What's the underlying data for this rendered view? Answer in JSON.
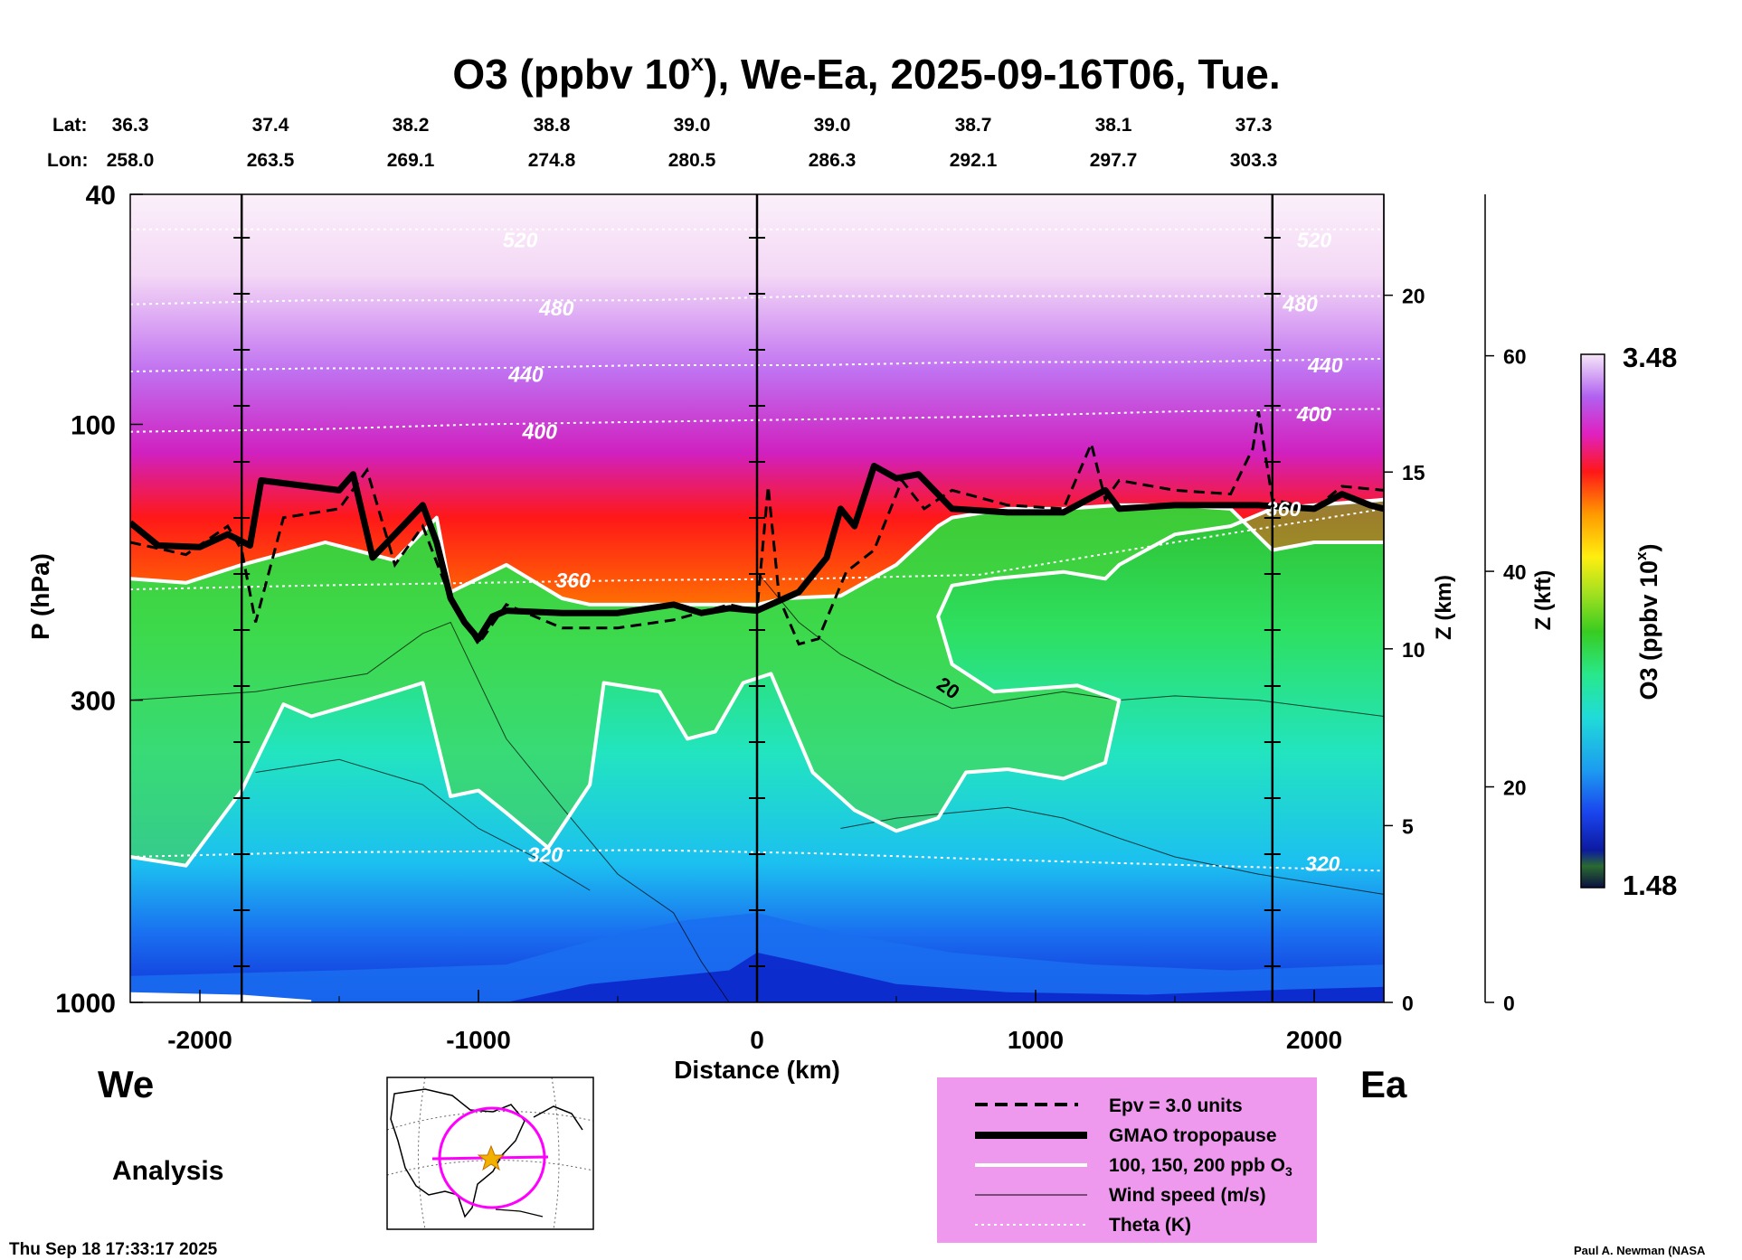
{
  "chart_data": {
    "type": "heatmap",
    "title": "O3 (ppbv 10^x), We-Ea, 2025-09-16T06, Tue.",
    "title_parts": {
      "main": "O3 (ppbv 10",
      "sup": "x",
      "rest": "), We-Ea, 2025-09-16T06, Tue."
    },
    "header": {
      "lat_label": "Lat:",
      "lon_label": "Lon:",
      "lat": [
        "36.3",
        "37.4",
        "38.2",
        "38.8",
        "39.0",
        "39.0",
        "38.7",
        "38.1",
        "37.3"
      ],
      "lon": [
        "258.0",
        "263.5",
        "269.1",
        "274.8",
        "280.5",
        "286.3",
        "292.1",
        "297.7",
        "303.3"
      ],
      "positions_km": [
        -2250,
        -1750,
        -1250,
        -750,
        -250,
        250,
        750,
        1250,
        1750
      ]
    },
    "xlabel": "Distance (km)",
    "xlim": [
      -2250,
      2250
    ],
    "xticks": [
      -2000,
      -1000,
      0,
      1000,
      2000
    ],
    "xtick_labels": [
      "-2000",
      "-1000",
      "0",
      "1000",
      "2000"
    ],
    "ylabel": "P (hPa)",
    "ylim": [
      1000,
      40
    ],
    "yscale": "log",
    "yticks": [
      1000,
      300,
      100,
      40
    ],
    "ytick_labels": [
      "1000",
      "300",
      "100",
      "40"
    ],
    "z_km_label": "Z (km)",
    "z_km_ticks": [
      0,
      5,
      10,
      15,
      20
    ],
    "z_km_tick_labels": [
      "0",
      "5",
      "10",
      "15",
      "20"
    ],
    "z_kft_label": "Z (kft)",
    "z_kft_ticks": [
      0,
      20,
      40,
      60
    ],
    "z_kft_tick_labels": [
      "0",
      "20",
      "40",
      "60"
    ],
    "profile_lines_km": [
      -1850,
      0,
      1850
    ],
    "colorbar": {
      "label": "O3 (ppbv 10^x)",
      "label_main": "O3 (ppbv 10",
      "label_sup": "x",
      "label_end": ")",
      "max": "3.48",
      "min": "1.48",
      "range": [
        1.48,
        3.48
      ]
    },
    "theta_contours": [
      {
        "label": "320",
        "p": [
          560,
          550,
          548,
          545,
          552,
          565,
          578,
          592
        ]
      },
      {
        "label": "360",
        "p": [
          193,
          190,
          188,
          186,
          185,
          182,
          160,
          140
        ]
      },
      {
        "label": "400",
        "p": [
          103,
          102,
          100,
          99,
          98,
          97,
          95,
          94
        ]
      },
      {
        "label": "440",
        "p": [
          81,
          80,
          80,
          79,
          79,
          78,
          78,
          77
        ]
      },
      {
        "label": "480",
        "p": [
          62,
          61,
          61,
          61,
          60,
          60,
          60,
          60
        ]
      },
      {
        "label": "520",
        "p": [
          46,
          46,
          46,
          46,
          46,
          46,
          46,
          46
        ]
      }
    ],
    "theta_labels": [
      {
        "text": "520",
        "km": -850,
        "p": 48
      },
      {
        "text": "480",
        "km": -720,
        "p": 63
      },
      {
        "text": "440",
        "km": -830,
        "p": 82
      },
      {
        "text": "400",
        "km": -780,
        "p": 103
      },
      {
        "text": "360",
        "km": -660,
        "p": 186
      },
      {
        "text": "320",
        "km": -760,
        "p": 555
      },
      {
        "text": "520",
        "km": 2000,
        "p": 48
      },
      {
        "text": "480",
        "km": 1950,
        "p": 62
      },
      {
        "text": "440",
        "km": 2040,
        "p": 79
      },
      {
        "text": "400",
        "km": 2000,
        "p": 96
      },
      {
        "text": "360",
        "km": 1890,
        "p": 140
      },
      {
        "text": "320",
        "km": 2030,
        "p": 575
      }
    ],
    "wind_label": {
      "text": "20",
      "km": 640,
      "p": 285
    },
    "tropopause": {
      "km": [
        -2250,
        -2150,
        -2000,
        -1900,
        -1820,
        -1780,
        -1500,
        -1450,
        -1380,
        -1300,
        -1200,
        -1150,
        -1100,
        -1050,
        -1000,
        -950,
        -900,
        -700,
        -500,
        -300,
        -200,
        -100,
        0,
        150,
        250,
        300,
        350,
        420,
        500,
        580,
        700,
        900,
        1100,
        1250,
        1300,
        1500,
        1800,
        2000,
        2100,
        2200,
        2250
      ],
      "p": [
        148,
        162,
        163,
        155,
        162,
        125,
        130,
        122,
        170,
        155,
        138,
        160,
        200,
        220,
        235,
        215,
        210,
        212,
        212,
        205,
        212,
        208,
        210,
        195,
        170,
        140,
        150,
        118,
        124,
        122,
        140,
        142,
        142,
        130,
        140,
        138,
        138,
        140,
        132,
        138,
        140
      ]
    },
    "epv_contour": {
      "km": [
        -2250,
        -2050,
        -1900,
        -1850,
        -1800,
        -1700,
        -1500,
        -1400,
        -1300,
        -1200,
        -1100,
        -1000,
        -900,
        -700,
        -500,
        -300,
        -100,
        0,
        40,
        80,
        150,
        220,
        320,
        420,
        520,
        600,
        700,
        900,
        1100,
        1200,
        1250,
        1300,
        1500,
        1700,
        1780,
        1800,
        1850,
        2000,
        2100,
        2250
      ],
      "p": [
        160,
        168,
        150,
        165,
        220,
        145,
        140,
        120,
        175,
        150,
        200,
        240,
        205,
        225,
        225,
        218,
        205,
        210,
        128,
        200,
        240,
        235,
        180,
        165,
        125,
        140,
        130,
        138,
        140,
        108,
        135,
        125,
        130,
        132,
        110,
        95,
        135,
        140,
        128,
        130
      ]
    },
    "o3_contours": [
      {
        "label": "100 ppb",
        "km": [
          -2250,
          -2050,
          -1850,
          -1550,
          -1300,
          -1150,
          -1100,
          -900,
          -700,
          -600,
          -500,
          -350,
          -200,
          0,
          100,
          300,
          500,
          650,
          700,
          900,
          1100,
          1300,
          1500,
          1700,
          1850,
          2000,
          2250
        ],
        "p": [
          185,
          188,
          175,
          160,
          172,
          145,
          195,
          175,
          200,
          205,
          205,
          205,
          205,
          205,
          200,
          198,
          175,
          150,
          145,
          140,
          140,
          138,
          138,
          140,
          165,
          160,
          160
        ]
      },
      {
        "label": "150 ppb",
        "km": [
          -2250,
          -2050,
          -1850,
          -1700,
          -1600,
          -1450,
          -1300,
          -1200,
          -1100,
          -1000,
          -900,
          -750,
          -600,
          -550,
          -350,
          -250,
          -150,
          -50,
          50,
          200,
          350,
          500,
          650,
          750,
          900,
          1100,
          1250,
          1300,
          1150,
          850,
          700,
          650,
          700,
          850,
          1100,
          1250,
          1300,
          1500,
          1700,
          1850,
          2000,
          2250
        ],
        "p": [
          560,
          580,
          430,
          305,
          320,
          305,
          290,
          280,
          440,
          430,
          470,
          540,
          420,
          280,
          290,
          350,
          340,
          280,
          270,
          400,
          465,
          505,
          480,
          400,
          395,
          410,
          385,
          300,
          283,
          290,
          260,
          215,
          190,
          185,
          180,
          185,
          175,
          155,
          150,
          140,
          138,
          135
        ]
      }
    ],
    "legend": [
      {
        "label": "Epv = 3.0 units",
        "style": "dashed"
      },
      {
        "label": "GMAO tropopause",
        "style": "thick"
      },
      {
        "label": "100, 150, 200 ppb O",
        "sub": "3",
        "style": "white"
      },
      {
        "label": "Wind speed (m/s)",
        "style": "thin"
      },
      {
        "label": "Theta (K)",
        "style": "dotted"
      }
    ],
    "direction_left": "We",
    "direction_right": "Ea"
  },
  "annotations": {
    "analysis": "Analysis",
    "timestamp": "Thu Sep 18 17:33:17 2025",
    "credit": "Paul A. Newman (NASA"
  },
  "colors": {
    "stratosphere_top": "#f7e4f6",
    "purple": "#b040f0",
    "red": "#ff1818",
    "orange": "#ff8800",
    "yellow": "#ffee10",
    "green": "#38cc20",
    "cyan": "#20dcc8",
    "blue": "#1040f0",
    "legend_bg": "#ee99ee"
  }
}
